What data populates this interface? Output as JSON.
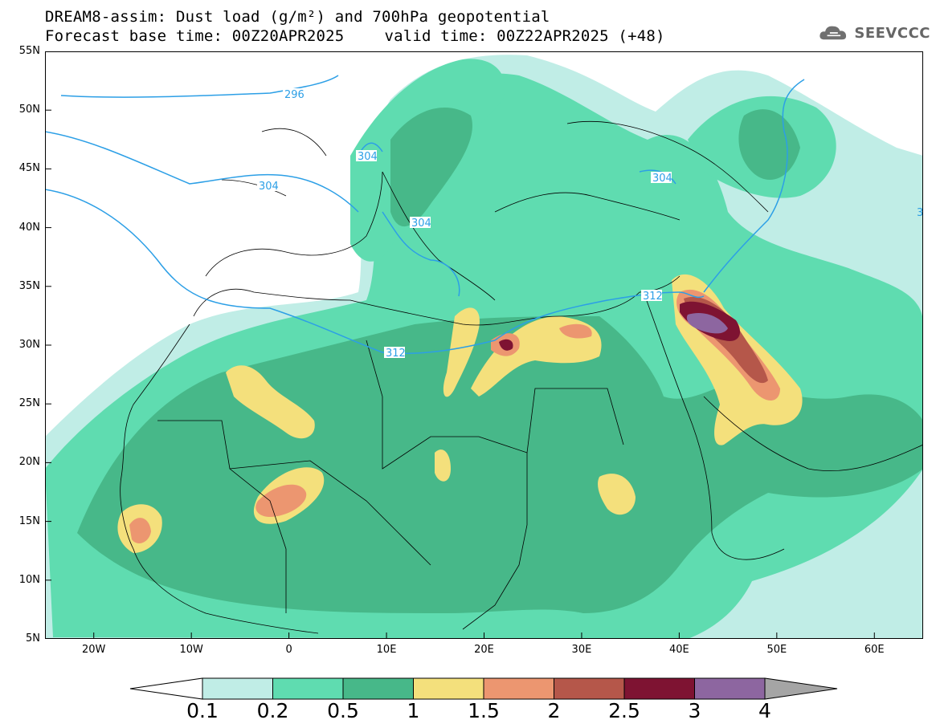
{
  "header": {
    "title_line1": "DREAM8-assim: Dust load (g/m²) and 700hPa geopotential",
    "base_time": "Forecast base time: 00Z20APR2025",
    "valid_time": "valid time: 00Z22APR2025 (+48)"
  },
  "logo": {
    "text": "SEEVCCC",
    "icon": "cloud-icon"
  },
  "map": {
    "lat_labels": [
      "55N",
      "50N",
      "45N",
      "40N",
      "35N",
      "30N",
      "25N",
      "20N",
      "15N",
      "10N",
      "5N"
    ],
    "lon_labels": [
      "20W",
      "10W",
      "0",
      "10E",
      "20E",
      "30E",
      "40E",
      "50E",
      "60E"
    ],
    "contour_labels": [
      "296",
      "304",
      "304",
      "304",
      "304",
      "312",
      "312",
      "3"
    ]
  },
  "colorbar": {
    "labels": [
      "0.1",
      "0.2",
      "0.5",
      "1",
      "1.5",
      "2",
      "2.5",
      "3",
      "4"
    ],
    "colors": [
      "#c0ede6",
      "#5fdcb0",
      "#47b889",
      "#f4e07c",
      "#ec9670",
      "#b5574a",
      "#7e1332",
      "#8d66a0",
      "#a5a5a5"
    ]
  }
}
